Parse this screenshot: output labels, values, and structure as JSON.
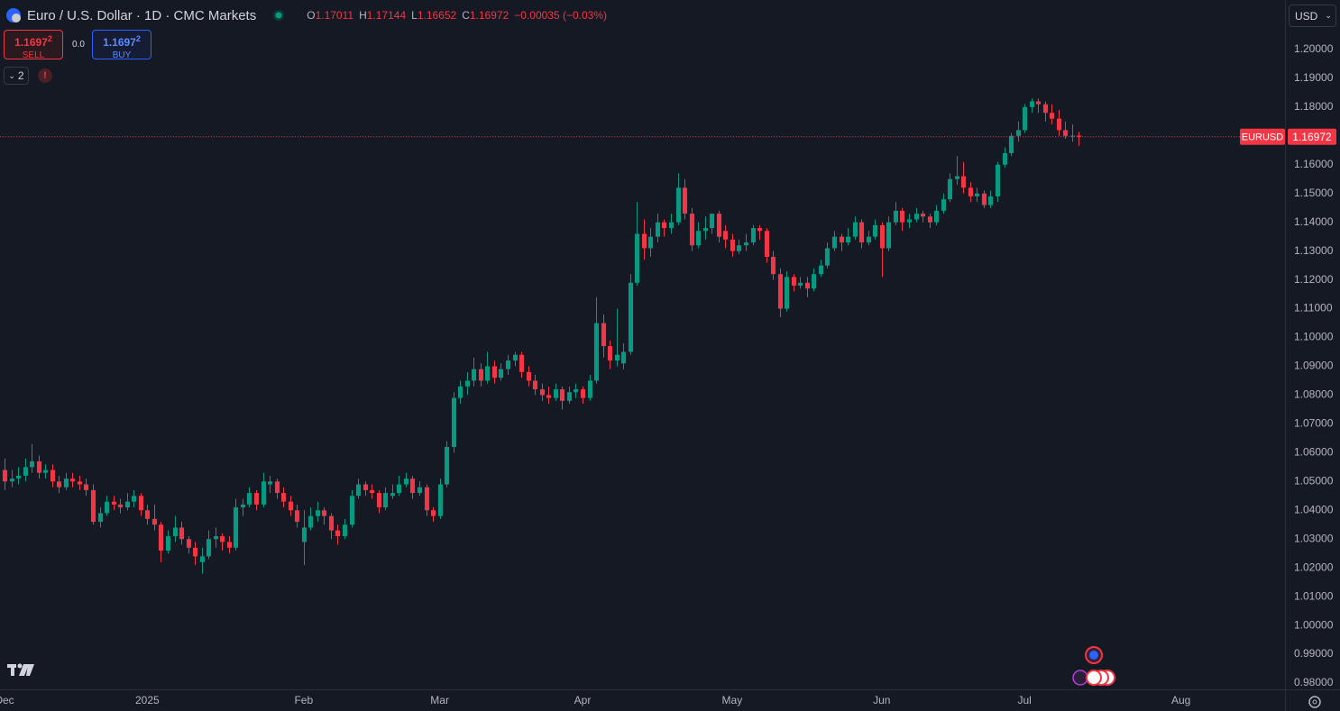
{
  "header": {
    "title": "Euro / U.S. Dollar · 1D · CMC Markets",
    "ohlc_prefixes": [
      "O",
      "H",
      "L",
      "C"
    ],
    "change": "−0.00035 (−0.03%)",
    "sell_price": "1.1697",
    "sell_pip": "2",
    "sell_label": "SELL",
    "spread": "0.0",
    "buy_price": "1.1697",
    "buy_pip": "2",
    "buy_label": "BUY",
    "indicator_count": "2",
    "currency": "USD"
  },
  "chart_data": {
    "type": "candlestick",
    "symbol": "EURUSD",
    "up_color": "#089981",
    "down_color": "#f23645",
    "grid": false,
    "xlim": [
      -0.66,
      188.3
    ],
    "xticks": [
      {
        "value": 0,
        "label": "Dec"
      },
      {
        "value": 21,
        "label": "2025"
      },
      {
        "value": 44,
        "label": "Feb"
      },
      {
        "value": 64,
        "label": "Mar"
      },
      {
        "value": 85,
        "label": "Apr"
      },
      {
        "value": 107,
        "label": "May"
      },
      {
        "value": 129,
        "label": "Jun"
      },
      {
        "value": 150,
        "label": "Jul"
      },
      {
        "value": 173,
        "label": "Aug"
      }
    ],
    "ylim": [
      0.97781,
      1.21719
    ],
    "yticks": [
      {
        "value": 0.98,
        "label": "0.98000"
      },
      {
        "value": 0.99,
        "label": "0.99000"
      },
      {
        "value": 1.0,
        "label": "1.00000"
      },
      {
        "value": 1.01,
        "label": "1.01000"
      },
      {
        "value": 1.02,
        "label": "1.02000"
      },
      {
        "value": 1.03,
        "label": "1.03000"
      },
      {
        "value": 1.04,
        "label": "1.04000"
      },
      {
        "value": 1.05,
        "label": "1.05000"
      },
      {
        "value": 1.06,
        "label": "1.06000"
      },
      {
        "value": 1.07,
        "label": "1.07000"
      },
      {
        "value": 1.08,
        "label": "1.08000"
      },
      {
        "value": 1.09,
        "label": "1.09000"
      },
      {
        "value": 1.1,
        "label": "1.10000"
      },
      {
        "value": 1.11,
        "label": "1.11000"
      },
      {
        "value": 1.12,
        "label": "1.12000"
      },
      {
        "value": 1.13,
        "label": "1.13000"
      },
      {
        "value": 1.14,
        "label": "1.14000"
      },
      {
        "value": 1.15,
        "label": "1.15000"
      },
      {
        "value": 1.16,
        "label": "1.16000"
      },
      {
        "value": 1.17,
        "label": "1.17000"
      },
      {
        "value": 1.18,
        "label": "1.18000"
      },
      {
        "value": 1.19,
        "label": "1.19000"
      },
      {
        "value": 1.2,
        "label": "1.20000"
      }
    ],
    "candles": [
      [
        1.054,
        1.058,
        1.047,
        1.05
      ],
      [
        1.05,
        1.054,
        1.048,
        1.051
      ],
      [
        1.051,
        1.055,
        1.049,
        1.052
      ],
      [
        1.052,
        1.058,
        1.05,
        1.055
      ],
      [
        1.055,
        1.063,
        1.053,
        1.057
      ],
      [
        1.057,
        1.059,
        1.051,
        1.053
      ],
      [
        1.053,
        1.056,
        1.051,
        1.054
      ],
      [
        1.054,
        1.056,
        1.048,
        1.05
      ],
      [
        1.05,
        1.052,
        1.046,
        1.048
      ],
      [
        1.048,
        1.053,
        1.047,
        1.051
      ],
      [
        1.051,
        1.053,
        1.048,
        1.05
      ],
      [
        1.05,
        1.052,
        1.047,
        1.049
      ],
      [
        1.049,
        1.051,
        1.045,
        1.047
      ],
      [
        1.047,
        1.049,
        1.035,
        1.036
      ],
      [
        1.036,
        1.041,
        1.034,
        1.039
      ],
      [
        1.039,
        1.045,
        1.038,
        1.043
      ],
      [
        1.043,
        1.045,
        1.04,
        1.042
      ],
      [
        1.042,
        1.044,
        1.039,
        1.041
      ],
      [
        1.041,
        1.046,
        1.04,
        1.043
      ],
      [
        1.043,
        1.047,
        1.041,
        1.045
      ],
      [
        1.045,
        1.046,
        1.038,
        1.04
      ],
      [
        1.04,
        1.042,
        1.035,
        1.037
      ],
      [
        1.037,
        1.042,
        1.033,
        1.035
      ],
      [
        1.035,
        1.036,
        1.022,
        1.026
      ],
      [
        1.026,
        1.033,
        1.025,
        1.031
      ],
      [
        1.031,
        1.038,
        1.029,
        1.034
      ],
      [
        1.034,
        1.036,
        1.028,
        1.03
      ],
      [
        1.03,
        1.031,
        1.025,
        1.027
      ],
      [
        1.027,
        1.029,
        1.021,
        1.024
      ],
      [
        1.022,
        1.027,
        1.018,
        1.024
      ],
      [
        1.024,
        1.033,
        1.023,
        1.03
      ],
      [
        1.03,
        1.034,
        1.027,
        1.031
      ],
      [
        1.031,
        1.032,
        1.026,
        1.029
      ],
      [
        1.029,
        1.031,
        1.025,
        1.027
      ],
      [
        1.027,
        1.044,
        1.026,
        1.041
      ],
      [
        1.041,
        1.044,
        1.038,
        1.042
      ],
      [
        1.042,
        1.048,
        1.041,
        1.046
      ],
      [
        1.046,
        1.047,
        1.04,
        1.042
      ],
      [
        1.042,
        1.053,
        1.041,
        1.05
      ],
      [
        1.049,
        1.052,
        1.046,
        1.05
      ],
      [
        1.05,
        1.051,
        1.044,
        1.046
      ],
      [
        1.046,
        1.048,
        1.041,
        1.043
      ],
      [
        1.043,
        1.045,
        1.038,
        1.04
      ],
      [
        1.04,
        1.042,
        1.034,
        1.036
      ],
      [
        1.029,
        1.04,
        1.021,
        1.034
      ],
      [
        1.034,
        1.041,
        1.033,
        1.038
      ],
      [
        1.038,
        1.043,
        1.036,
        1.04
      ],
      [
        1.04,
        1.041,
        1.035,
        1.038
      ],
      [
        1.038,
        1.039,
        1.03,
        1.033
      ],
      [
        1.033,
        1.035,
        1.028,
        1.031
      ],
      [
        1.031,
        1.037,
        1.03,
        1.035
      ],
      [
        1.035,
        1.047,
        1.034,
        1.045
      ],
      [
        1.045,
        1.051,
        1.044,
        1.049
      ],
      [
        1.049,
        1.05,
        1.045,
        1.047
      ],
      [
        1.047,
        1.049,
        1.044,
        1.046
      ],
      [
        1.046,
        1.047,
        1.039,
        1.041
      ],
      [
        1.041,
        1.048,
        1.04,
        1.046
      ],
      [
        1.045,
        1.049,
        1.044,
        1.046
      ],
      [
        1.046,
        1.052,
        1.045,
        1.049
      ],
      [
        1.049,
        1.053,
        1.048,
        1.051
      ],
      [
        1.051,
        1.052,
        1.044,
        1.046
      ],
      [
        1.046,
        1.05,
        1.045,
        1.048
      ],
      [
        1.048,
        1.049,
        1.038,
        1.04
      ],
      [
        1.04,
        1.041,
        1.036,
        1.038
      ],
      [
        1.038,
        1.051,
        1.037,
        1.049
      ],
      [
        1.049,
        1.064,
        1.048,
        1.062
      ],
      [
        1.062,
        1.081,
        1.06,
        1.079
      ],
      [
        1.079,
        1.085,
        1.077,
        1.083
      ],
      [
        1.083,
        1.088,
        1.08,
        1.085
      ],
      [
        1.085,
        1.093,
        1.083,
        1.089
      ],
      [
        1.089,
        1.091,
        1.083,
        1.085
      ],
      [
        1.085,
        1.095,
        1.084,
        1.09
      ],
      [
        1.09,
        1.092,
        1.084,
        1.086
      ],
      [
        1.086,
        1.091,
        1.085,
        1.089
      ],
      [
        1.089,
        1.094,
        1.087,
        1.092
      ],
      [
        1.092,
        1.095,
        1.09,
        1.094
      ],
      [
        1.094,
        1.095,
        1.086,
        1.088
      ],
      [
        1.088,
        1.09,
        1.083,
        1.085
      ],
      [
        1.085,
        1.087,
        1.08,
        1.082
      ],
      [
        1.082,
        1.084,
        1.078,
        1.08
      ],
      [
        1.08,
        1.083,
        1.077,
        1.079
      ],
      [
        1.079,
        1.084,
        1.078,
        1.082
      ],
      [
        1.082,
        1.083,
        1.075,
        1.078
      ],
      [
        1.078,
        1.083,
        1.077,
        1.081
      ],
      [
        1.081,
        1.084,
        1.079,
        1.082
      ],
      [
        1.082,
        1.083,
        1.077,
        1.079
      ],
      [
        1.079,
        1.087,
        1.078,
        1.085
      ],
      [
        1.085,
        1.114,
        1.084,
        1.105
      ],
      [
        1.105,
        1.108,
        1.093,
        1.097
      ],
      [
        1.097,
        1.099,
        1.089,
        1.092
      ],
      [
        1.092,
        1.11,
        1.09,
        1.094
      ],
      [
        1.091,
        1.098,
        1.089,
        1.095
      ],
      [
        1.095,
        1.122,
        1.094,
        1.119
      ],
      [
        1.119,
        1.147,
        1.118,
        1.136
      ],
      [
        1.136,
        1.141,
        1.127,
        1.131
      ],
      [
        1.131,
        1.138,
        1.128,
        1.135
      ],
      [
        1.135,
        1.143,
        1.133,
        1.14
      ],
      [
        1.14,
        1.141,
        1.135,
        1.138
      ],
      [
        1.138,
        1.143,
        1.136,
        1.14
      ],
      [
        1.14,
        1.157,
        1.139,
        1.152
      ],
      [
        1.152,
        1.155,
        1.141,
        1.143
      ],
      [
        1.143,
        1.145,
        1.13,
        1.132
      ],
      [
        1.132,
        1.14,
        1.131,
        1.137
      ],
      [
        1.137,
        1.142,
        1.134,
        1.138
      ],
      [
        1.138,
        1.143,
        1.136,
        1.143
      ],
      [
        1.143,
        1.144,
        1.133,
        1.135
      ],
      [
        1.137,
        1.139,
        1.131,
        1.134
      ],
      [
        1.134,
        1.136,
        1.128,
        1.13
      ],
      [
        1.13,
        1.134,
        1.129,
        1.132
      ],
      [
        1.132,
        1.136,
        1.13,
        1.133
      ],
      [
        1.133,
        1.139,
        1.132,
        1.138
      ],
      [
        1.138,
        1.139,
        1.134,
        1.137
      ],
      [
        1.137,
        1.138,
        1.126,
        1.128
      ],
      [
        1.128,
        1.13,
        1.12,
        1.122
      ],
      [
        1.122,
        1.124,
        1.107,
        1.11
      ],
      [
        1.11,
        1.123,
        1.109,
        1.121
      ],
      [
        1.121,
        1.122,
        1.116,
        1.118
      ],
      [
        1.118,
        1.121,
        1.117,
        1.119
      ],
      [
        1.119,
        1.121,
        1.114,
        1.117
      ],
      [
        1.117,
        1.124,
        1.116,
        1.122
      ],
      [
        1.122,
        1.127,
        1.121,
        1.125
      ],
      [
        1.125,
        1.133,
        1.124,
        1.131
      ],
      [
        1.131,
        1.137,
        1.13,
        1.135
      ],
      [
        1.135,
        1.136,
        1.13,
        1.133
      ],
      [
        1.133,
        1.138,
        1.132,
        1.135
      ],
      [
        1.135,
        1.142,
        1.134,
        1.14
      ],
      [
        1.14,
        1.141,
        1.131,
        1.133
      ],
      [
        1.133,
        1.137,
        1.132,
        1.135
      ],
      [
        1.135,
        1.141,
        1.134,
        1.139
      ],
      [
        1.139,
        1.14,
        1.121,
        1.131
      ],
      [
        1.131,
        1.142,
        1.13,
        1.14
      ],
      [
        1.14,
        1.147,
        1.139,
        1.144
      ],
      [
        1.144,
        1.145,
        1.137,
        1.14
      ],
      [
        1.14,
        1.143,
        1.138,
        1.141
      ],
      [
        1.141,
        1.145,
        1.14,
        1.143
      ],
      [
        1.143,
        1.144,
        1.14,
        1.142
      ],
      [
        1.142,
        1.143,
        1.138,
        1.14
      ],
      [
        1.14,
        1.146,
        1.139,
        1.144
      ],
      [
        1.144,
        1.15,
        1.143,
        1.148
      ],
      [
        1.148,
        1.157,
        1.147,
        1.155
      ],
      [
        1.155,
        1.163,
        1.153,
        1.156
      ],
      [
        1.156,
        1.161,
        1.15,
        1.152
      ],
      [
        1.152,
        1.154,
        1.147,
        1.149
      ],
      [
        1.149,
        1.152,
        1.147,
        1.15
      ],
      [
        1.15,
        1.151,
        1.145,
        1.146
      ],
      [
        1.146,
        1.151,
        1.145,
        1.149
      ],
      [
        1.149,
        1.161,
        1.147,
        1.16
      ],
      [
        1.16,
        1.166,
        1.159,
        1.164
      ],
      [
        1.164,
        1.171,
        1.163,
        1.17
      ],
      [
        1.17,
        1.175,
        1.168,
        1.172
      ],
      [
        1.172,
        1.181,
        1.171,
        1.18
      ],
      [
        1.18,
        1.183,
        1.178,
        1.182
      ],
      [
        1.182,
        1.183,
        1.178,
        1.181
      ],
      [
        1.181,
        1.182,
        1.175,
        1.178
      ],
      [
        1.178,
        1.181,
        1.174,
        1.176
      ],
      [
        1.176,
        1.179,
        1.17,
        1.172
      ],
      [
        1.172,
        1.175,
        1.169,
        1.17
      ],
      [
        1.17,
        1.174,
        1.168,
        1.1701
      ],
      [
        1.17011,
        1.17144,
        1.16652,
        1.16972
      ]
    ]
  }
}
